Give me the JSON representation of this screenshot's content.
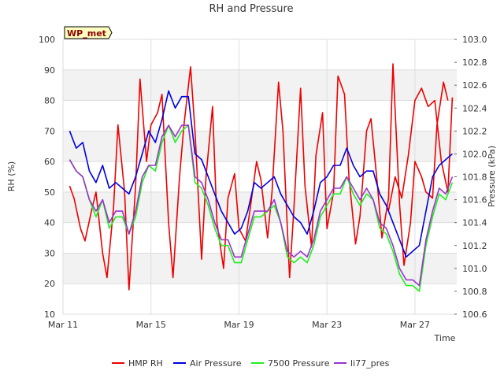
{
  "chart_data": {
    "type": "line",
    "title": "RH and Pressure",
    "xlabel": "Time",
    "ylabel_left": "RH (%)",
    "ylabel_right": "Pressure (kPa)",
    "badge": "WP_met",
    "x_ticks": [
      "Mar 11",
      "Mar 15",
      "Mar 19",
      "Mar 23",
      "Mar 27"
    ],
    "x_tick_days": [
      11,
      15,
      19,
      23,
      27
    ],
    "xlim": [
      11,
      28.9
    ],
    "y_left_lim": [
      10,
      100
    ],
    "y_left_ticks": [
      "10",
      "20",
      "30",
      "40",
      "50",
      "60",
      "70",
      "80",
      "90",
      "100"
    ],
    "y_right_lim": [
      100.6,
      103.0
    ],
    "y_right_ticks": [
      "100.6",
      "100.8",
      "101.0",
      "101.2",
      "101.4",
      "101.6",
      "101.8",
      "102.0",
      "102.2",
      "102.4",
      "102.6",
      "102.8",
      "103.0"
    ],
    "grid": true,
    "legend_position": "bottom",
    "colors": {
      "hmp_rh": "#ee0000",
      "air_pressure": "#0000dd",
      "p7500": "#22ee22",
      "li77": "#9933cc",
      "band": "#f2f2f2",
      "badge_bg": "#ffffc0"
    },
    "series": [
      {
        "name": "HMP RH",
        "axis": "left",
        "color": "#ee0000",
        "x": [
          11.3,
          11.5,
          11.8,
          12.0,
          12.3,
          12.5,
          12.8,
          13.0,
          13.3,
          13.5,
          13.8,
          14.0,
          14.3,
          14.5,
          14.8,
          15.0,
          15.3,
          15.5,
          15.8,
          16.0,
          16.3,
          16.5,
          16.8,
          17.0,
          17.3,
          17.5,
          17.8,
          18.0,
          18.3,
          18.5,
          18.8,
          19.0,
          19.3,
          19.5,
          19.8,
          20.0,
          20.3,
          20.5,
          20.8,
          21.0,
          21.3,
          21.5,
          21.8,
          22.0,
          22.3,
          22.5,
          22.8,
          23.0,
          23.3,
          23.5,
          23.8,
          24.0,
          24.3,
          24.5,
          24.8,
          25.0,
          25.3,
          25.5,
          25.8,
          26.0,
          26.3,
          26.5,
          26.8,
          27.0,
          27.3,
          27.5,
          27.8,
          28.0,
          28.3,
          28.5
        ],
        "y": [
          52,
          48,
          38,
          34,
          44,
          50,
          30,
          22,
          45,
          72,
          50,
          18,
          52,
          87,
          60,
          72,
          76,
          82,
          40,
          22,
          55,
          72,
          91,
          70,
          28,
          55,
          78,
          40,
          25,
          48,
          56,
          38,
          34,
          44,
          60,
          54,
          35,
          50,
          86,
          70,
          22,
          45,
          84,
          52,
          32,
          62,
          76,
          38,
          50,
          88,
          82,
          55,
          33,
          42,
          70,
          74,
          52,
          35,
          48,
          92,
          46,
          26,
          40,
          60,
          55,
          50,
          48,
          72,
          86,
          80
        ],
        "x2": [
          25.8,
          26.1,
          26.4,
          26.7,
          27.0,
          27.3,
          27.6,
          27.9,
          28.2,
          28.5,
          28.7
        ],
        "y2": [
          44,
          55,
          48,
          62,
          80,
          84,
          78,
          80,
          60,
          50,
          81
        ]
      },
      {
        "name": "Air Pressure",
        "axis": "right",
        "color": "#0000dd",
        "x": [
          11.3,
          11.6,
          11.9,
          12.2,
          12.5,
          12.8,
          13.1,
          13.4,
          13.7,
          14.0,
          14.3,
          14.6,
          14.9,
          15.2,
          15.5,
          15.8,
          16.1,
          16.4,
          16.7,
          17.0,
          17.3,
          17.6,
          17.9,
          18.2,
          18.5,
          18.8,
          19.1,
          19.4,
          19.7,
          20.0,
          20.3,
          20.6,
          20.9,
          21.2,
          21.5,
          21.8,
          22.1,
          22.4,
          22.7,
          23.0,
          23.3,
          23.6,
          23.9,
          24.2,
          24.5,
          24.8,
          25.1,
          25.4,
          25.7,
          26.0,
          26.3,
          26.6,
          26.9,
          27.2,
          27.5,
          27.8,
          28.1,
          28.4,
          28.7
        ],
        "y": [
          102.2,
          102.05,
          102.1,
          101.85,
          101.75,
          101.9,
          101.7,
          101.75,
          101.7,
          101.65,
          101.8,
          102.0,
          102.2,
          102.1,
          102.3,
          102.55,
          102.4,
          102.5,
          102.5,
          102.0,
          101.95,
          101.8,
          101.65,
          101.5,
          101.4,
          101.3,
          101.35,
          101.5,
          101.75,
          101.7,
          101.75,
          101.8,
          101.65,
          101.55,
          101.45,
          101.4,
          101.3,
          101.5,
          101.75,
          101.8,
          101.9,
          101.9,
          102.05,
          101.9,
          101.8,
          101.85,
          101.85,
          101.65,
          101.55,
          101.4,
          101.25,
          101.1,
          101.15,
          101.2,
          101.5,
          101.8,
          101.9,
          101.95,
          102.0
        ]
      },
      {
        "name": "7500 Pressure",
        "axis": "right",
        "color": "#22ee22",
        "x": [
          11.3,
          11.6,
          11.9,
          12.2,
          12.5,
          12.8,
          13.1,
          13.4,
          13.7,
          14.0,
          14.3,
          14.6,
          14.9,
          15.2,
          15.5,
          15.8,
          16.1,
          16.4,
          16.7,
          17.0,
          17.3,
          17.6,
          17.9,
          18.2,
          18.5,
          18.8,
          19.1,
          19.4,
          19.7,
          20.0,
          20.3,
          20.6,
          20.9,
          21.2,
          21.5,
          21.8,
          22.1,
          22.4,
          22.7,
          23.0,
          23.3,
          23.6,
          23.9,
          24.2,
          24.5,
          24.8,
          25.1,
          25.4,
          25.7,
          26.0,
          26.3,
          26.6,
          26.9,
          27.2,
          27.5,
          27.8,
          28.1,
          28.4,
          28.7
        ],
        "y": [
          101.95,
          101.85,
          101.8,
          101.6,
          101.45,
          101.6,
          101.35,
          101.45,
          101.45,
          101.3,
          101.45,
          101.75,
          101.9,
          101.85,
          102.1,
          102.25,
          102.1,
          102.2,
          102.25,
          101.75,
          101.7,
          101.55,
          101.35,
          101.2,
          101.2,
          101.05,
          101.05,
          101.25,
          101.45,
          101.45,
          101.5,
          101.55,
          101.4,
          101.1,
          101.05,
          101.1,
          101.05,
          101.2,
          101.45,
          101.55,
          101.65,
          101.65,
          101.8,
          101.65,
          101.55,
          101.65,
          101.6,
          101.35,
          101.3,
          101.15,
          100.95,
          100.85,
          100.85,
          100.8,
          101.2,
          101.45,
          101.65,
          101.6,
          101.75
        ]
      },
      {
        "name": "li77_pres",
        "axis": "right",
        "color": "#9933cc",
        "x": [
          11.3,
          11.6,
          11.9,
          12.2,
          12.5,
          12.8,
          13.1,
          13.4,
          13.7,
          14.0,
          14.3,
          14.6,
          14.9,
          15.2,
          15.5,
          15.8,
          16.1,
          16.4,
          16.7,
          17.0,
          17.3,
          17.6,
          17.9,
          18.2,
          18.5,
          18.8,
          19.1,
          19.4,
          19.7,
          20.0,
          20.3,
          20.6,
          20.9,
          21.2,
          21.5,
          21.8,
          22.1,
          22.4,
          22.7,
          23.0,
          23.3,
          23.6,
          23.9,
          24.2,
          24.5,
          24.8,
          25.1,
          25.4,
          25.7,
          26.0,
          26.3,
          26.6,
          26.9,
          27.2,
          27.5,
          27.8,
          28.1,
          28.4,
          28.7
        ],
        "y": [
          101.95,
          101.85,
          101.8,
          101.6,
          101.5,
          101.6,
          101.4,
          101.5,
          101.5,
          101.3,
          101.5,
          101.8,
          101.9,
          101.9,
          102.15,
          102.25,
          102.15,
          102.25,
          102.25,
          101.8,
          101.75,
          101.6,
          101.4,
          101.25,
          101.25,
          101.1,
          101.1,
          101.3,
          101.5,
          101.5,
          101.5,
          101.6,
          101.4,
          101.15,
          101.1,
          101.15,
          101.1,
          101.25,
          101.5,
          101.6,
          101.7,
          101.7,
          101.8,
          101.7,
          101.6,
          101.7,
          101.6,
          101.4,
          101.35,
          101.2,
          101.0,
          100.9,
          100.9,
          100.85,
          101.25,
          101.5,
          101.7,
          101.65,
          101.8
        ]
      }
    ]
  }
}
